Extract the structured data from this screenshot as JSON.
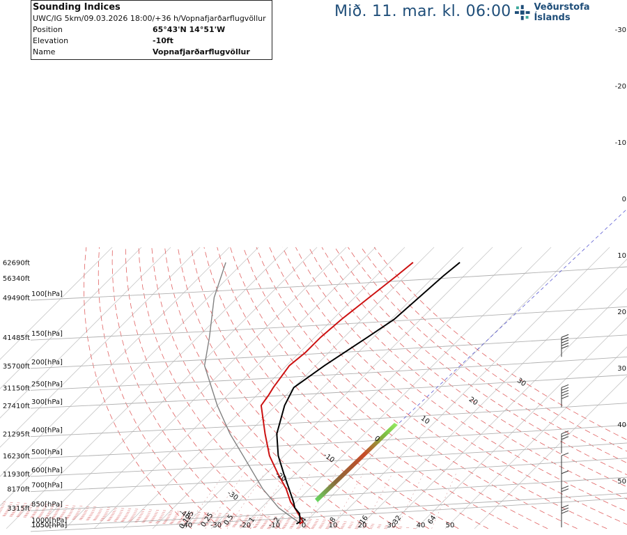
{
  "header": {
    "title": "Mið. 11. mar. kl. 06:00",
    "logo_text": "Veðurstofa Íslands"
  },
  "info_box": {
    "title": "Sounding Indices",
    "subtitle": "UWC/IG 5km/09.03.2026 18:00/+36 h/Vopnafjarðarflugvöllur",
    "rows": [
      {
        "key": "Position",
        "value": "65°43'N 14°51'W"
      },
      {
        "key": "Elevation",
        "value": "-10ft"
      },
      {
        "key": "Name",
        "value": "Vopnafjarðarflugvöllur"
      }
    ]
  },
  "colors": {
    "temperature": "#cc1111",
    "dewpoint": "#000000",
    "parcel": "#808080",
    "isobar": "#b0b0b0",
    "isotherm": "#c8c8c8",
    "dry_adiabat": "#e06060",
    "moist_adiabat": "#e08080",
    "mixing_ratio": "#d9a0a0",
    "wind_barb": "#333333"
  },
  "chart_data": {
    "type": "skew-t",
    "altitude_labels": [
      {
        "label": "62690ft",
        "p": 70
      },
      {
        "label": "56340ft",
        "p": 82
      },
      {
        "label": "49490ft",
        "p": 100
      },
      {
        "label": "41485ft",
        "p": 150
      },
      {
        "label": "35700ft",
        "p": 200
      },
      {
        "label": "31150ft",
        "p": 250
      },
      {
        "label": "27410ft",
        "p": 300
      },
      {
        "label": "21295ft",
        "p": 400
      },
      {
        "label": "16230ft",
        "p": 500
      },
      {
        "label": "11930ft",
        "p": 600
      },
      {
        "label": "8170ft",
        "p": 700
      },
      {
        "label": "3315ft",
        "p": 850
      }
    ],
    "pressure_labels": [
      {
        "label": "100[hPa]",
        "p": 100
      },
      {
        "label": "150[hPa]",
        "p": 150
      },
      {
        "label": "200[hPa]",
        "p": 200
      },
      {
        "label": "250[hPa]",
        "p": 250
      },
      {
        "label": "300[hPa]",
        "p": 300
      },
      {
        "label": "400[hPa]",
        "p": 400
      },
      {
        "label": "500[hPa]",
        "p": 500
      },
      {
        "label": "600[hPa]",
        "p": 600
      },
      {
        "label": "700[hPa]",
        "p": 700
      },
      {
        "label": "850[hPa]",
        "p": 850
      },
      {
        "label": "1000[hPa]",
        "p": 1000
      },
      {
        "label": "1050[hPa]",
        "p": 1050
      }
    ],
    "bottom_temp_labels": [
      "-40",
      "-30",
      "-20",
      "-10",
      "0",
      "10",
      "20",
      "30",
      "40",
      "50"
    ],
    "mixing_ratio_labels": [
      "0.125",
      "0.25",
      "0.5",
      "1",
      "2",
      "4",
      "8",
      "16",
      "32",
      "64"
    ],
    "skewed_labels": [
      "-40",
      "-30",
      "-20",
      "-10",
      "0",
      "10",
      "20",
      "30"
    ],
    "right_labels": [
      "-30",
      "-20",
      "-10",
      "0",
      "10",
      "20",
      "30",
      "40",
      "50"
    ],
    "temperature": [
      {
        "p": 1000,
        "t": -1.5
      },
      {
        "p": 980,
        "t": -1.0
      },
      {
        "p": 950,
        "t": -2.5
      },
      {
        "p": 900,
        "t": -5.5
      },
      {
        "p": 850,
        "t": -8.5
      },
      {
        "p": 800,
        "t": -12
      },
      {
        "p": 700,
        "t": -18
      },
      {
        "p": 600,
        "t": -26
      },
      {
        "p": 500,
        "t": -35
      },
      {
        "p": 400,
        "t": -44
      },
      {
        "p": 300,
        "t": -55
      },
      {
        "p": 270,
        "t": -56
      },
      {
        "p": 250,
        "t": -57
      },
      {
        "p": 200,
        "t": -59
      },
      {
        "p": 175,
        "t": -58
      },
      {
        "p": 150,
        "t": -58
      },
      {
        "p": 125,
        "t": -57
      },
      {
        "p": 100,
        "t": -55
      },
      {
        "p": 80,
        "t": -53
      },
      {
        "p": 70,
        "t": -52
      }
    ],
    "dewpoint": [
      {
        "p": 1000,
        "t": -2.5
      },
      {
        "p": 980,
        "t": -2.0
      },
      {
        "p": 950,
        "t": -3.0
      },
      {
        "p": 900,
        "t": -5.0
      },
      {
        "p": 850,
        "t": -8.5
      },
      {
        "p": 800,
        "t": -11
      },
      {
        "p": 700,
        "t": -17
      },
      {
        "p": 600,
        "t": -24
      },
      {
        "p": 500,
        "t": -32
      },
      {
        "p": 400,
        "t": -40
      },
      {
        "p": 300,
        "t": -47
      },
      {
        "p": 250,
        "t": -50
      },
      {
        "p": 200,
        "t": -47
      },
      {
        "p": 150,
        "t": -42
      },
      {
        "p": 125,
        "t": -39
      },
      {
        "p": 100,
        "t": -38
      },
      {
        "p": 80,
        "t": -37
      },
      {
        "p": 70,
        "t": -36
      }
    ],
    "parcel": [
      {
        "p": 1000,
        "t": -1.0
      },
      {
        "p": 850,
        "t": -14
      },
      {
        "p": 700,
        "t": -26
      },
      {
        "p": 500,
        "t": -44
      },
      {
        "p": 400,
        "t": -56
      },
      {
        "p": 300,
        "t": -70
      },
      {
        "p": 200,
        "t": -88
      },
      {
        "p": 150,
        "t": -96
      },
      {
        "p": 100,
        "t": -108
      },
      {
        "p": 70,
        "t": -116
      }
    ],
    "wind_barbs": [
      {
        "p": 850,
        "speed_kt": 25
      },
      {
        "p": 700,
        "speed_kt": 20
      },
      {
        "p": 600,
        "speed_kt": 10
      },
      {
        "p": 500,
        "speed_kt": 10
      },
      {
        "p": 400,
        "speed_kt": 30
      },
      {
        "p": 250,
        "speed_kt": 50
      },
      {
        "p": 150,
        "speed_kt": 45
      }
    ]
  }
}
